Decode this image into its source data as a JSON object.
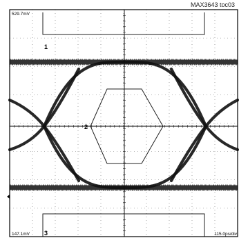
{
  "figure_caption": "MAX3643 toc03",
  "chart_data": {
    "type": "eye-diagram",
    "top_left_readout": "529.7mV",
    "bottom_left_readout": "147.1mV",
    "bottom_right_readout": "115.0ps/div",
    "markers": [
      "1",
      "2",
      "3"
    ],
    "grid": true,
    "grid_divisions": [
      10,
      8
    ],
    "mask": "hexagon"
  }
}
